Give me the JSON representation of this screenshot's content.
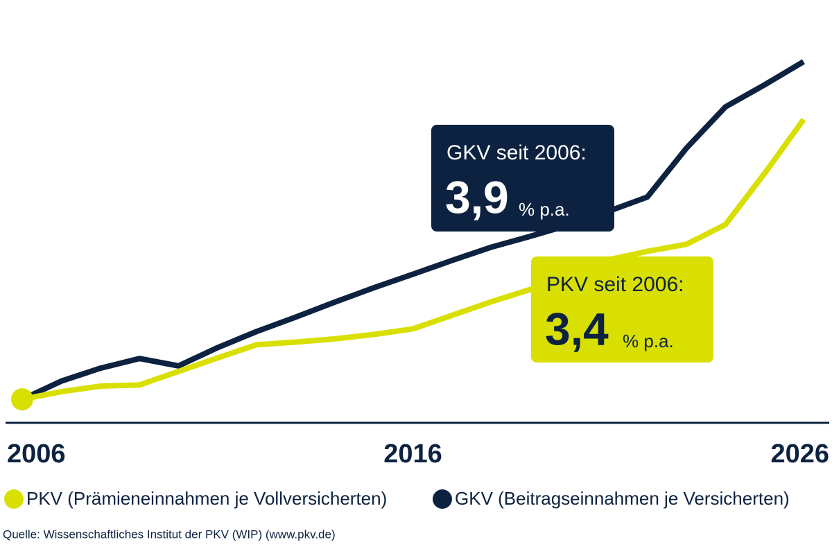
{
  "chart_data": {
    "type": "line",
    "x": [
      2006,
      2007,
      2008,
      2009,
      2010,
      2011,
      2012,
      2013,
      2014,
      2015,
      2016,
      2017,
      2018,
      2019,
      2020,
      2021,
      2022,
      2023,
      2024,
      2025,
      2026
    ],
    "xlim": [
      2006,
      2026
    ],
    "xticks": [
      2006,
      2016,
      2026
    ],
    "ylim": [
      92,
      236
    ],
    "series": [
      {
        "name": "PKV (Prämieneinnahmen je Vollversicherten)",
        "color": "#d9df00",
        "values": [
          100,
          102.6,
          104.5,
          104.9,
          109.5,
          114.1,
          118.6,
          119.5,
          120.6,
          122.1,
          124.0,
          128.6,
          133.2,
          137.4,
          142.2,
          147.5,
          150.4,
          152.8,
          159.5,
          176.9,
          195.3
        ]
      },
      {
        "name": "GKV (Beitragseinnahmen je Versicherten)",
        "color": "#0d2240",
        "values": [
          100,
          106.2,
          110.6,
          113.9,
          111.4,
          117.6,
          123.1,
          128.0,
          133.1,
          138.0,
          142.6,
          147.3,
          151.8,
          155.5,
          159.4,
          164.0,
          168.9,
          185.5,
          199.6,
          207.1,
          215.0
        ]
      }
    ],
    "annotations": [
      {
        "label": "GKV seit 2006:",
        "value": "3,9",
        "unit": "% p.a."
      },
      {
        "label": "PKV seit 2006:",
        "value": "3,4",
        "unit": "% p.a."
      }
    ],
    "source": "Quelle: Wissenschaftliches Institut der PKV (WIP) (www.pkv.de)"
  }
}
